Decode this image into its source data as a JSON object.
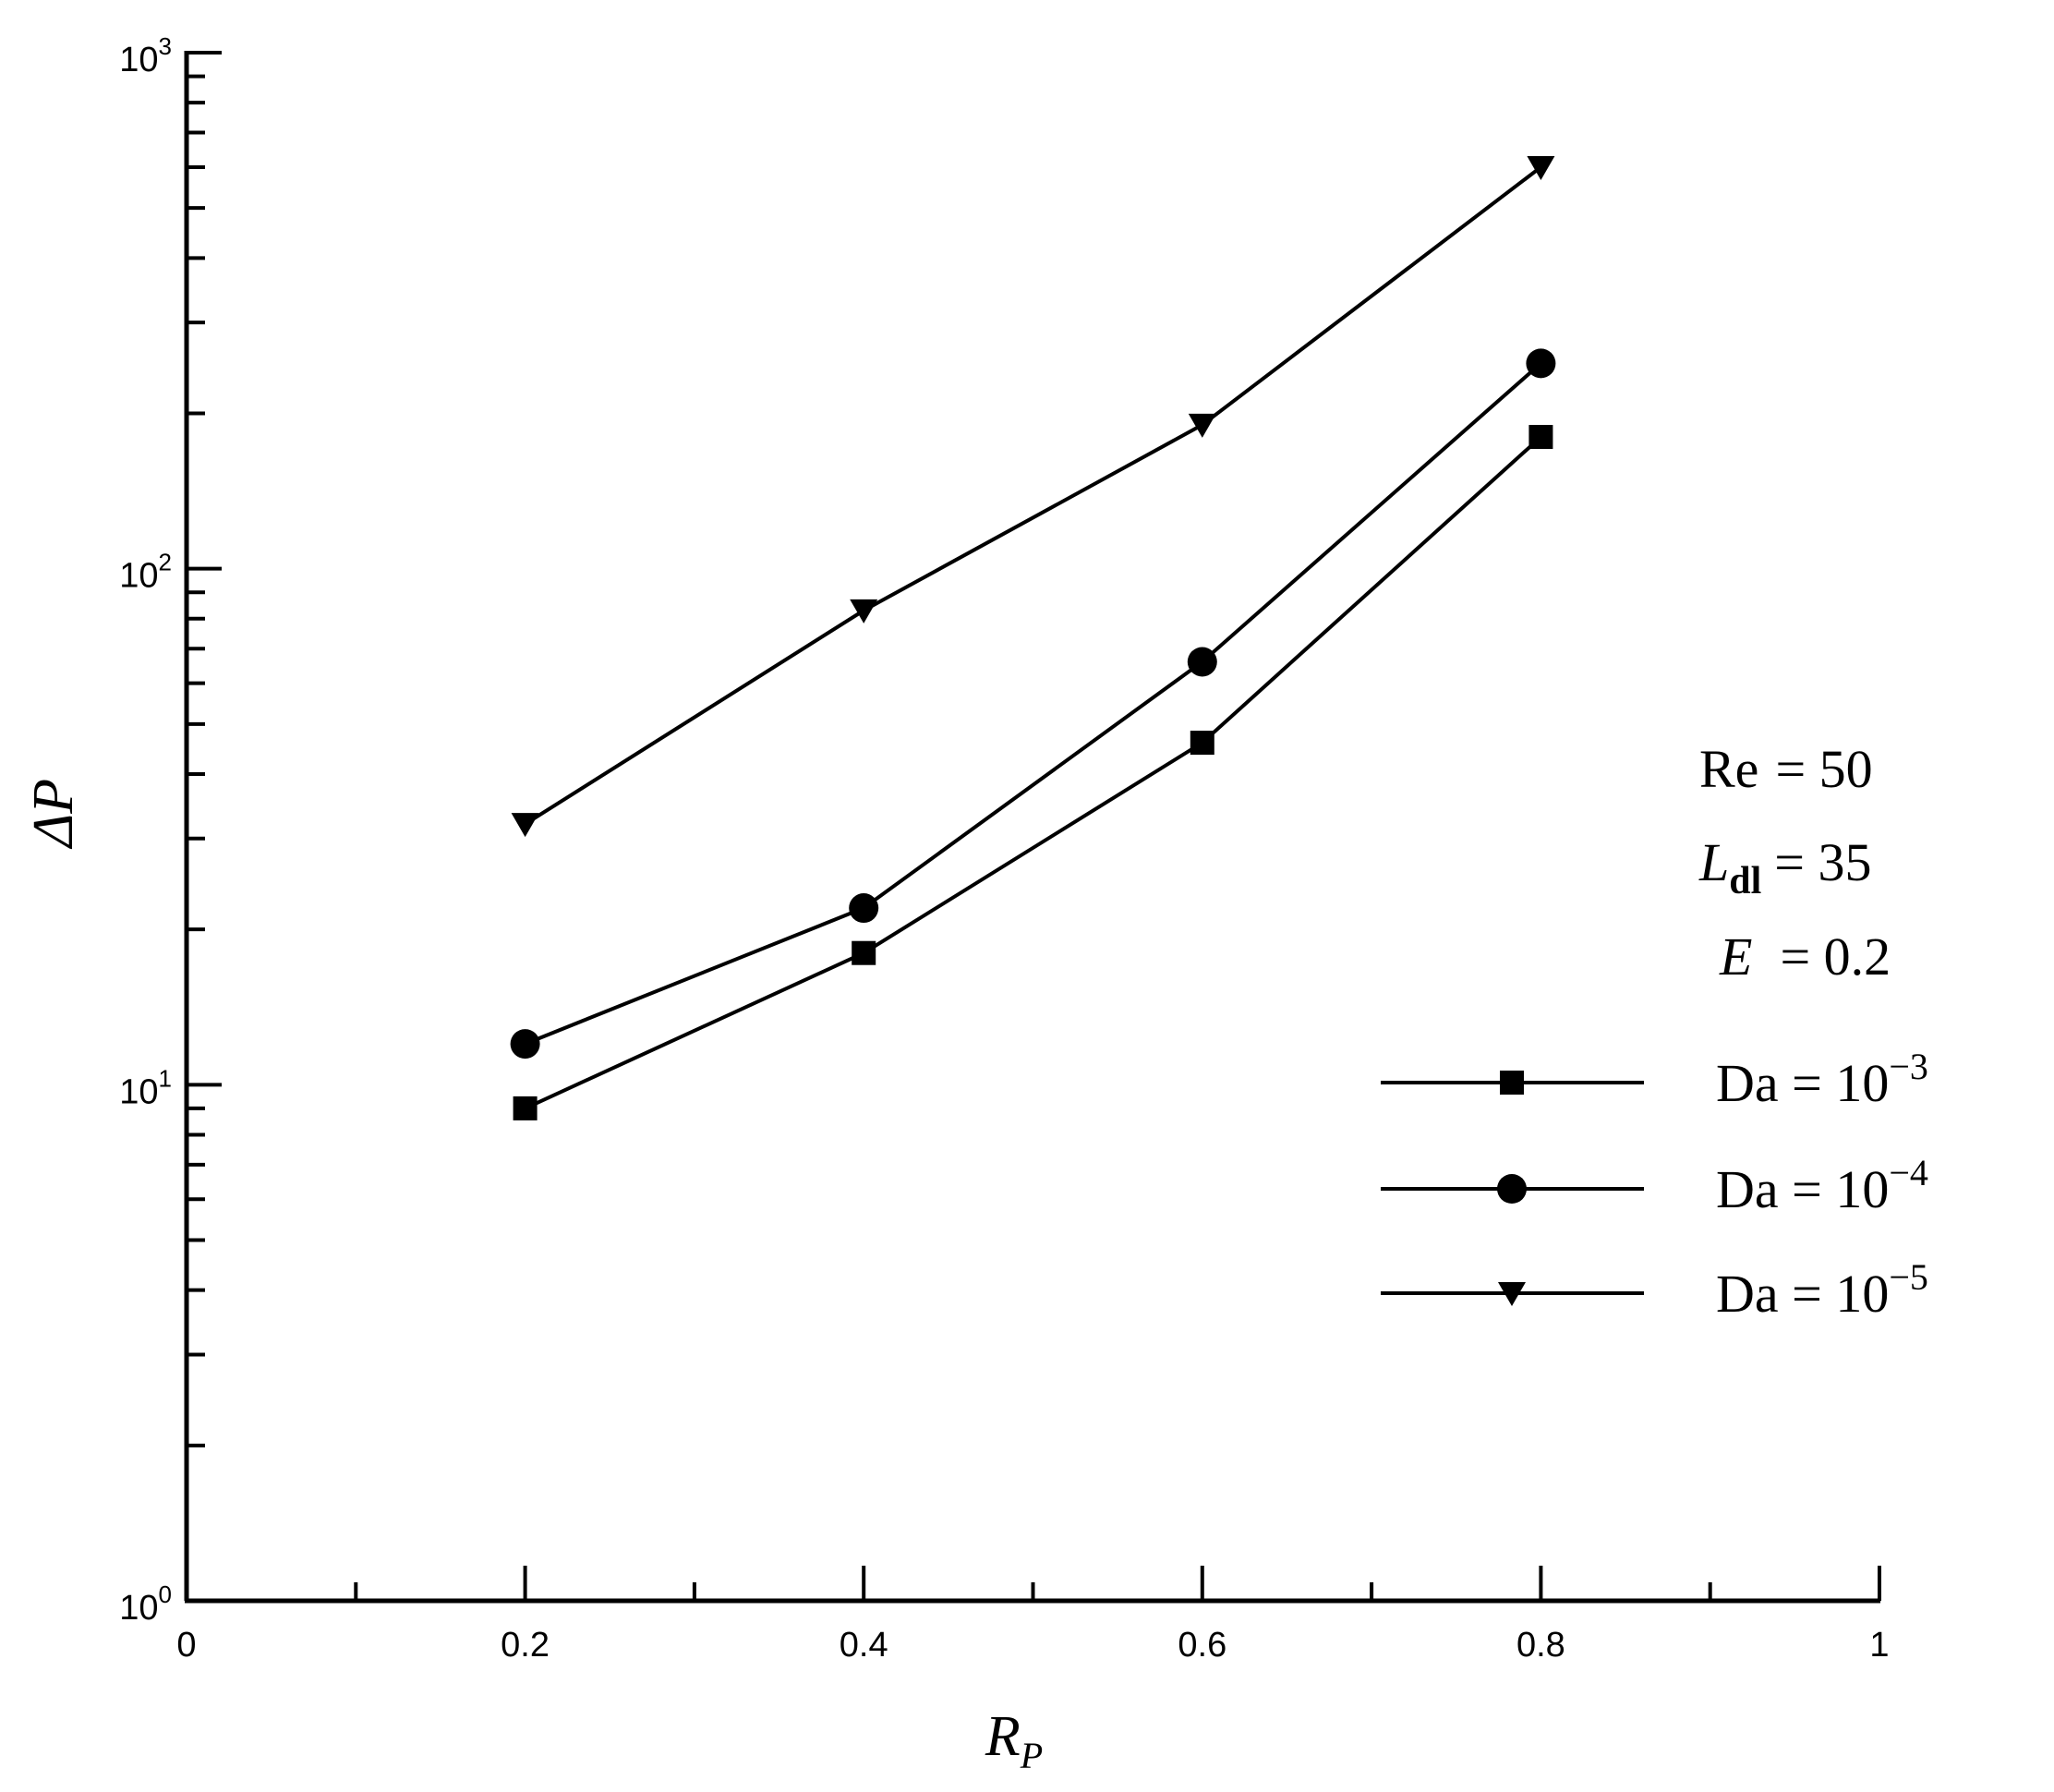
{
  "chart_data": {
    "type": "line",
    "title": "",
    "xlabel": "R",
    "xlabel_sub": "P",
    "ylabel": "ΔP",
    "xlim": [
      0,
      1
    ],
    "ylim": [
      1,
      1000
    ],
    "y_scale": "log",
    "x_ticks": [
      "0",
      "0.2",
      "0.4",
      "0.6",
      "0.8",
      "1"
    ],
    "y_ticks": [
      {
        "base": "10",
        "exp": "0"
      },
      {
        "base": "10",
        "exp": "1"
      },
      {
        "base": "10",
        "exp": "2"
      },
      {
        "base": "10",
        "exp": "3"
      }
    ],
    "grid": false,
    "legend_position": "right",
    "x": [
      0.2,
      0.4,
      0.6,
      0.8
    ],
    "series": [
      {
        "name_text": "Da  =  10",
        "name_exp": "−3",
        "marker": "square",
        "values": [
          9,
          18,
          46,
          180
        ]
      },
      {
        "name_text": "Da  =  10",
        "name_exp": "−4",
        "marker": "circle",
        "values": [
          12,
          22,
          66,
          250
        ]
      },
      {
        "name_text": "Da  =  10",
        "name_exp": "−5",
        "marker": "triangle-down",
        "values": [
          32,
          83,
          190,
          600
        ]
      }
    ],
    "annotations": {
      "re": {
        "label": "Re",
        "value": "=  50"
      },
      "ldl": {
        "label": "L",
        "sub": "dl",
        "value": "=  35"
      },
      "e": {
        "label": "E",
        "value": "= 0.2"
      }
    }
  }
}
